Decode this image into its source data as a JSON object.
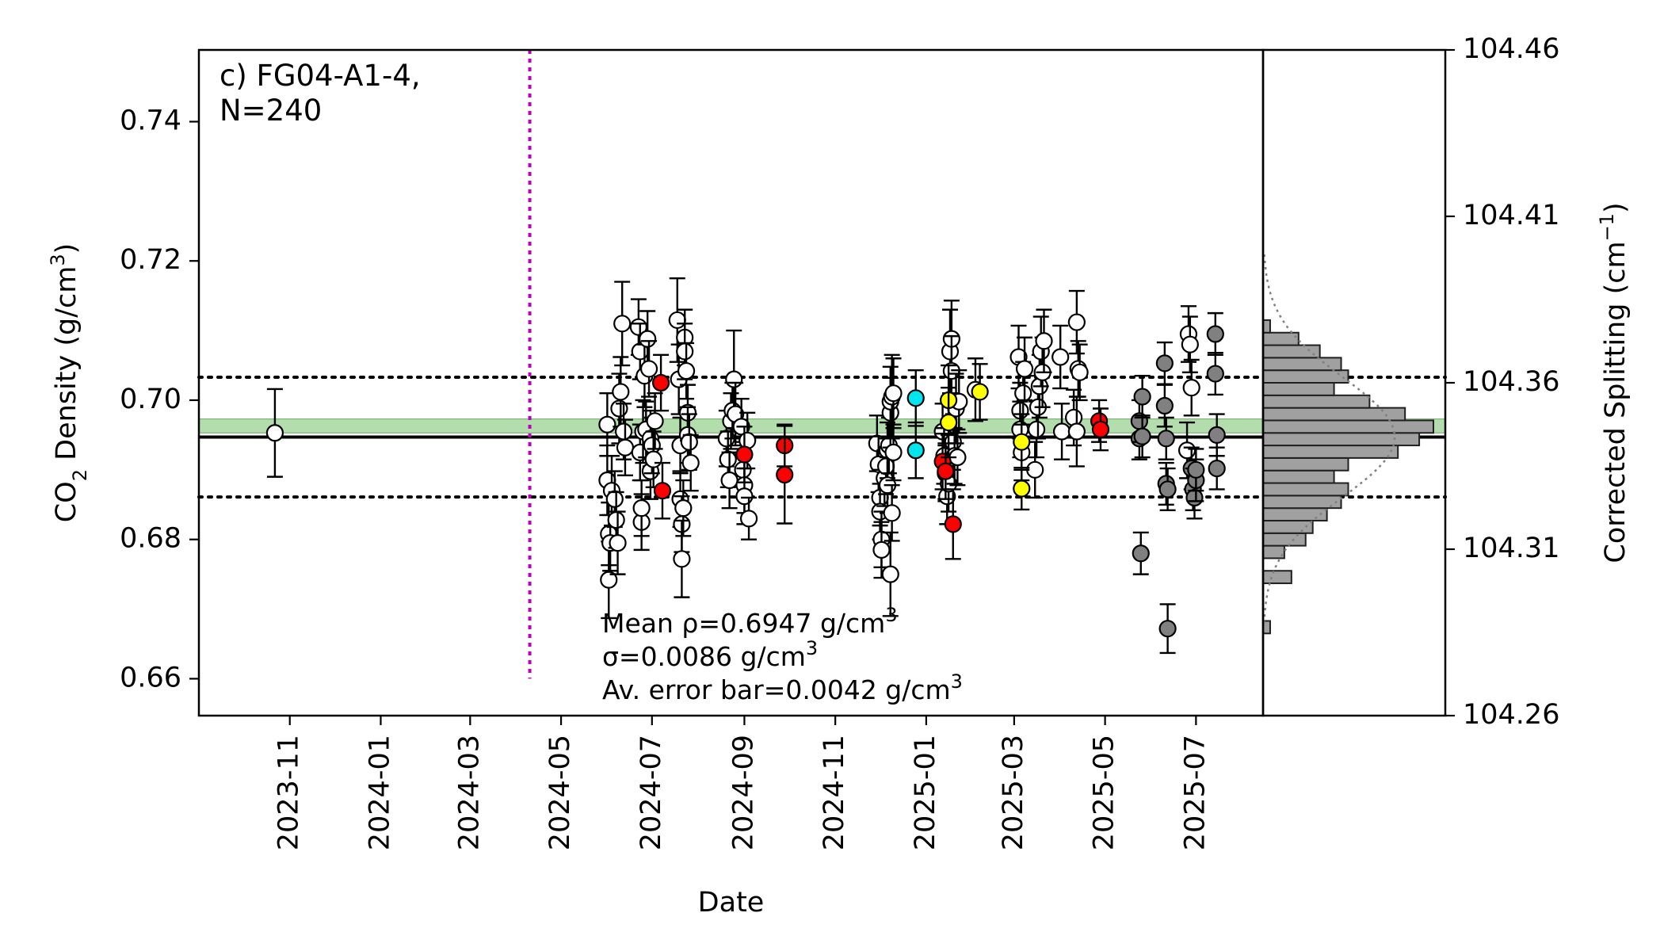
{
  "chart_data": {
    "type": "scatter",
    "panel_label": [
      "c) FG04-A1-4,",
      "N=240"
    ],
    "xlabel": "Date",
    "ylabel": {
      "prefix": "CO",
      "sub": "2",
      "mid": " Density (g/cm",
      "sup": "3",
      "suffix": ")"
    },
    "ylabel_right": {
      "prefix": "Corrected Splitting (cm",
      "sup": "−1",
      "suffix": ")"
    },
    "x_range": [
      "2023-09-01",
      "2025-08-15"
    ],
    "y_range": [
      0.6547,
      0.7503
    ],
    "x_ticks": [
      "2023-11",
      "2024-01",
      "2024-03",
      "2024-05",
      "2024-07",
      "2024-09",
      "2024-11",
      "2025-01",
      "2025-03",
      "2025-05",
      "2025-07"
    ],
    "y_ticks": [
      0.66,
      0.68,
      0.7,
      0.72,
      0.74
    ],
    "y_tick_labels": [
      "0.66",
      "0.68",
      "0.70",
      "0.72",
      "0.74"
    ],
    "right_ticks": [
      104.26,
      104.31,
      104.36,
      104.41,
      104.46
    ],
    "right_tick_labels": [
      "104.26",
      "104.31",
      "104.36",
      "104.41",
      "104.46"
    ],
    "right_range": [
      104.26,
      104.46
    ],
    "mean": 0.6947,
    "sigma": 0.0086,
    "band": [
      0.6953,
      0.6973
    ],
    "vline_date": "2024-04-10",
    "vline_y_range": [
      0.66,
      0.7503
    ],
    "annotation": [
      {
        "pre": "Mean ρ=0.6947 g/cm",
        "sup": "3"
      },
      {
        "pre": "σ=0.0086 g/cm",
        "sup": "3"
      },
      {
        "pre": "Av. error bar=0.0042 g/cm",
        "sup": "3"
      }
    ],
    "colors": {
      "white": "#ffffff",
      "red": "#ff0000",
      "cyan": "#00e5ee",
      "yellow": "#ffff00",
      "gray": "#808080",
      "band": "#a8d8a0",
      "vline": "#c000c0"
    },
    "series": [
      {
        "color": "white",
        "points": [
          [
            "2023-10-22",
            0.6953,
            0.0063
          ],
          [
            "2024-06-01",
            0.6965,
            0.0045
          ],
          [
            "2024-06-01",
            0.6885,
            0.005
          ],
          [
            "2024-06-02",
            0.6808,
            0.0045
          ],
          [
            "2024-06-02",
            0.6742,
            0.0055
          ],
          [
            "2024-06-03",
            0.6795,
            0.004
          ],
          [
            "2024-06-04",
            0.687,
            0.005
          ],
          [
            "2024-06-06",
            0.6858,
            0.004
          ],
          [
            "2024-06-07",
            0.6828,
            0.004
          ],
          [
            "2024-06-08",
            0.6795,
            0.0045
          ],
          [
            "2024-06-09",
            0.6988,
            0.005
          ],
          [
            "2024-06-10",
            0.7012,
            0.005
          ],
          [
            "2024-06-11",
            0.711,
            0.006
          ],
          [
            "2024-06-12",
            0.6955,
            0.004
          ],
          [
            "2024-06-13",
            0.6932,
            0.004
          ],
          [
            "2024-06-22",
            0.7105,
            0.004
          ],
          [
            "2024-06-23",
            0.707,
            0.004
          ],
          [
            "2024-06-23",
            0.6925,
            0.004
          ],
          [
            "2024-06-24",
            0.6825,
            0.004
          ],
          [
            "2024-06-24",
            0.6845,
            0.004
          ],
          [
            "2024-06-25",
            0.6955,
            0.0045
          ],
          [
            "2024-06-26",
            0.7035,
            0.0045
          ],
          [
            "2024-06-27",
            0.6958,
            0.004
          ],
          [
            "2024-06-28",
            0.7088,
            0.004
          ],
          [
            "2024-06-29",
            0.7045,
            0.004
          ],
          [
            "2024-06-30",
            0.6945,
            0.004
          ],
          [
            "2024-06-30",
            0.6898,
            0.004
          ],
          [
            "2024-07-01",
            0.6935,
            0.004
          ],
          [
            "2024-07-02",
            0.6915,
            0.004
          ],
          [
            "2024-07-03",
            0.697,
            0.004
          ],
          [
            "2024-07-18",
            0.7115,
            0.006
          ],
          [
            "2024-07-19",
            0.703,
            0.005
          ],
          [
            "2024-07-20",
            0.6935,
            0.004
          ],
          [
            "2024-07-20",
            0.6858,
            0.004
          ],
          [
            "2024-07-21",
            0.6822,
            0.004
          ],
          [
            "2024-07-21",
            0.6772,
            0.0055
          ],
          [
            "2024-07-22",
            0.6845,
            0.004
          ],
          [
            "2024-07-23",
            0.709,
            0.004
          ],
          [
            "2024-07-23",
            0.707,
            0.004
          ],
          [
            "2024-07-24",
            0.7042,
            0.004
          ],
          [
            "2024-07-25",
            0.6982,
            0.004
          ],
          [
            "2024-07-25",
            0.695,
            0.004
          ],
          [
            "2024-07-26",
            0.694,
            0.004
          ],
          [
            "2024-07-27",
            0.691,
            0.004
          ],
          [
            "2024-08-20",
            0.6945,
            0.004
          ],
          [
            "2024-08-21",
            0.6915,
            0.004
          ],
          [
            "2024-08-22",
            0.6885,
            0.004
          ],
          [
            "2024-08-23",
            0.697,
            0.004
          ],
          [
            "2024-08-24",
            0.6985,
            0.004
          ],
          [
            "2024-08-25",
            0.703,
            0.007
          ],
          [
            "2024-08-26",
            0.698,
            0.0045
          ],
          [
            "2024-08-30",
            0.6962,
            0.004
          ],
          [
            "2024-08-31",
            0.69,
            0.004
          ],
          [
            "2024-09-01",
            0.6878,
            0.004
          ],
          [
            "2024-09-01",
            0.6862,
            0.004
          ],
          [
            "2024-09-03",
            0.6942,
            0.004
          ],
          [
            "2024-09-04",
            0.683,
            0.003
          ],
          [
            "2024-11-29",
            0.6938,
            0.004
          ],
          [
            "2024-11-30",
            0.6908,
            0.004
          ],
          [
            "2024-12-01",
            0.686,
            0.004
          ],
          [
            "2024-12-01",
            0.684,
            0.004
          ],
          [
            "2024-12-02",
            0.68,
            0.004
          ],
          [
            "2024-12-02",
            0.6785,
            0.004
          ],
          [
            "2024-12-04",
            0.6888,
            0.004
          ],
          [
            "2024-12-05",
            0.6905,
            0.004
          ],
          [
            "2024-12-06",
            0.6928,
            0.004
          ],
          [
            "2024-12-06",
            0.6878,
            0.004
          ],
          [
            "2024-12-07",
            0.6935,
            0.004
          ],
          [
            "2024-12-08",
            0.6982,
            0.005
          ],
          [
            "2024-12-08",
            0.6998,
            0.005
          ],
          [
            "2024-12-09",
            0.7005,
            0.006
          ],
          [
            "2024-12-10",
            0.701,
            0.005
          ],
          [
            "2024-12-08",
            0.675,
            0.006
          ],
          [
            "2024-12-09",
            0.6838,
            0.004
          ],
          [
            "2024-12-10",
            0.6925,
            0.004
          ],
          [
            "2025-01-12",
            0.6955,
            0.004
          ],
          [
            "2025-01-13",
            0.692,
            0.004
          ],
          [
            "2025-01-14",
            0.6895,
            0.004
          ],
          [
            "2025-01-15",
            0.6862,
            0.004
          ],
          [
            "2025-01-16",
            0.688,
            0.004
          ],
          [
            "2025-01-17",
            0.707,
            0.006
          ],
          [
            "2025-01-18",
            0.7088,
            0.0055
          ],
          [
            "2025-01-18",
            0.7042,
            0.005
          ],
          [
            "2025-01-19",
            0.694,
            0.004
          ],
          [
            "2025-01-20",
            0.692,
            0.004
          ],
          [
            "2025-01-21",
            0.6988,
            0.005
          ],
          [
            "2025-01-22",
            0.6918,
            0.004
          ],
          [
            "2025-01-23",
            0.6998,
            0.0045
          ],
          [
            "2025-02-03",
            0.7015,
            0.0045
          ],
          [
            "2025-03-04",
            0.7062,
            0.0045
          ],
          [
            "2025-03-05",
            0.6985,
            0.004
          ],
          [
            "2025-03-05",
            0.6958,
            0.004
          ],
          [
            "2025-03-06",
            0.6925,
            0.004
          ],
          [
            "2025-03-07",
            0.701,
            0.0045
          ],
          [
            "2025-03-08",
            0.7045,
            0.0045
          ],
          [
            "2025-03-15",
            0.69,
            0.004
          ],
          [
            "2025-03-16",
            0.6958,
            0.004
          ],
          [
            "2025-03-17",
            0.699,
            0.0045
          ],
          [
            "2025-03-18",
            0.702,
            0.0045
          ],
          [
            "2025-03-19",
            0.707,
            0.005
          ],
          [
            "2025-03-20",
            0.704,
            0.005
          ],
          [
            "2025-03-21",
            0.7085,
            0.0045
          ],
          [
            "2025-04-01",
            0.7062,
            0.0045
          ],
          [
            "2025-04-02",
            0.6955,
            0.004
          ],
          [
            "2025-04-10",
            0.6975,
            0.004
          ],
          [
            "2025-04-12",
            0.7112,
            0.0045
          ],
          [
            "2025-04-13",
            0.7045,
            0.004
          ],
          [
            "2025-04-14",
            0.704,
            0.004
          ],
          [
            "2025-04-12",
            0.6955,
            0.005
          ],
          [
            "2025-06-25",
            0.6928,
            0.004
          ],
          [
            "2025-06-26",
            0.7095,
            0.004
          ],
          [
            "2025-06-27",
            0.708,
            0.004
          ],
          [
            "2025-06-28",
            0.7018,
            0.004
          ]
        ]
      },
      {
        "color": "red",
        "points": [
          [
            "2024-07-07",
            0.7025,
            0.004
          ],
          [
            "2024-07-08",
            0.687,
            0.004
          ],
          [
            "2024-09-01",
            0.6922,
            0.004
          ],
          [
            "2024-09-28",
            0.6935,
            0.003
          ],
          [
            "2024-09-28",
            0.6893,
            0.007
          ],
          [
            "2025-01-12",
            0.6912,
            0.004
          ],
          [
            "2025-01-14",
            0.6898,
            0.004
          ],
          [
            "2025-01-19",
            0.6822,
            0.005
          ],
          [
            "2025-04-27",
            0.697,
            0.003
          ],
          [
            "2025-04-28",
            0.6958,
            0.003
          ]
        ]
      },
      {
        "color": "cyan",
        "points": [
          [
            "2024-12-25",
            0.7003,
            0.004
          ],
          [
            "2024-12-25",
            0.6928,
            0.004
          ]
        ]
      },
      {
        "color": "yellow",
        "points": [
          [
            "2025-01-16",
            0.7,
            0.005
          ],
          [
            "2025-01-16",
            0.6968,
            0.005
          ],
          [
            "2025-02-06",
            0.7012,
            0.004
          ],
          [
            "2025-03-06",
            0.694,
            0.004
          ],
          [
            "2025-03-06",
            0.6873,
            0.003
          ]
        ]
      },
      {
        "color": "gray",
        "points": [
          [
            "2025-05-24",
            0.6945,
            0.003
          ],
          [
            "2025-05-24",
            0.697,
            0.003
          ],
          [
            "2025-05-25",
            0.678,
            0.003
          ],
          [
            "2025-05-26",
            0.7005,
            0.003
          ],
          [
            "2025-05-26",
            0.6948,
            0.003
          ],
          [
            "2025-06-10",
            0.7053,
            0.003
          ],
          [
            "2025-06-10",
            0.6992,
            0.003
          ],
          [
            "2025-06-11",
            0.6945,
            0.003
          ],
          [
            "2025-06-11",
            0.688,
            0.003
          ],
          [
            "2025-06-12",
            0.6872,
            0.003
          ],
          [
            "2025-06-12",
            0.6672,
            0.0035
          ],
          [
            "2025-06-28",
            0.6902,
            0.003
          ],
          [
            "2025-06-29",
            0.6872,
            0.003
          ],
          [
            "2025-06-30",
            0.686,
            0.003
          ],
          [
            "2025-07-01",
            0.6885,
            0.003
          ],
          [
            "2025-07-01",
            0.69,
            0.003
          ],
          [
            "2025-07-14",
            0.7095,
            0.003
          ],
          [
            "2025-07-14",
            0.7038,
            0.003
          ],
          [
            "2025-07-15",
            0.695,
            0.003
          ],
          [
            "2025-07-15",
            0.6902,
            0.003
          ]
        ]
      }
    ],
    "histogram": {
      "bin_edges": [
        0.6665,
        0.6683,
        0.6701,
        0.6719,
        0.6737,
        0.6755,
        0.6773,
        0.6791,
        0.6809,
        0.6827,
        0.6845,
        0.6863,
        0.6881,
        0.6899,
        0.6917,
        0.6935,
        0.6953,
        0.6971,
        0.6989,
        0.7007,
        0.7025,
        0.7043,
        0.7061,
        0.7079,
        0.7097,
        0.7115
      ],
      "counts": [
        1,
        0,
        0,
        0,
        4,
        0,
        3,
        6,
        7,
        9,
        11,
        12,
        10,
        12,
        19,
        22,
        24,
        20,
        15,
        10,
        12,
        11,
        8,
        5,
        1
      ]
    }
  }
}
